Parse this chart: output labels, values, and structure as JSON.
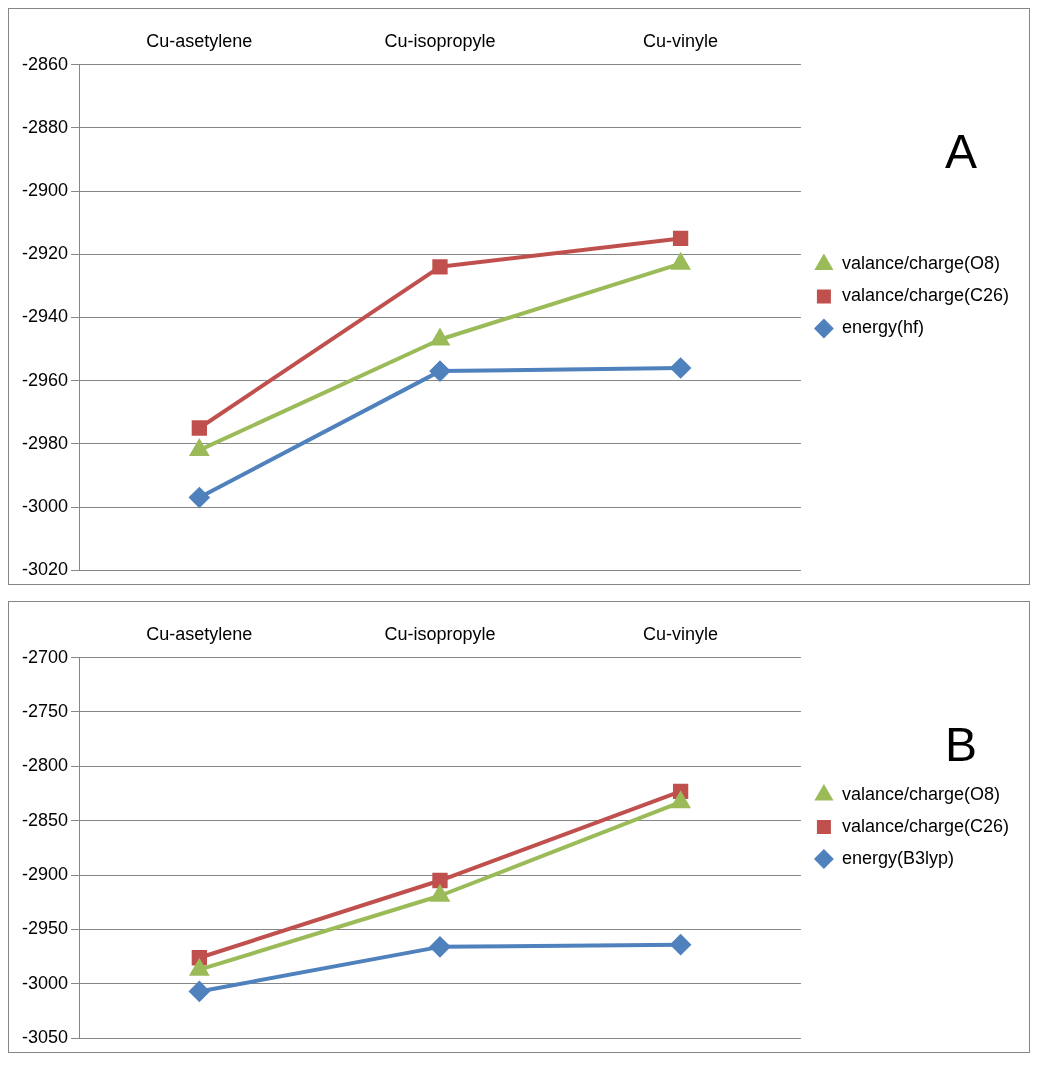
{
  "chart_data": [
    {
      "type": "line",
      "categories": [
        "Cu-asetylene",
        "Cu-isopropyle",
        "Cu-vinyle"
      ],
      "ylim": [
        -3020,
        -2860
      ],
      "yticks": [
        -3020,
        -3000,
        -2980,
        -2960,
        -2940,
        -2920,
        -2900,
        -2880,
        -2860
      ],
      "grid": "y",
      "legend": "right",
      "annotations": [
        "A"
      ],
      "series": [
        {
          "name": "valance/charge(O8)",
          "color": "#9bbb59",
          "marker": "triangle",
          "values": [
            -2982,
            -2947,
            -2923
          ]
        },
        {
          "name": "valance/charge(C26)",
          "color": "#c0504d",
          "marker": "square",
          "values": [
            -2975,
            -2924,
            -2915
          ]
        },
        {
          "name": "energy(hf)",
          "color": "#4f81bd",
          "marker": "diamond",
          "values": [
            -2997,
            -2957,
            -2956
          ]
        }
      ]
    },
    {
      "type": "line",
      "categories": [
        "Cu-asetylene",
        "Cu-isopropyle",
        "Cu-vinyle"
      ],
      "ylim": [
        -3050,
        -2700
      ],
      "yticks": [
        -3050,
        -3000,
        -2950,
        -2900,
        -2850,
        -2800,
        -2750,
        -2700
      ],
      "grid": "y",
      "legend": "right",
      "annotations": [
        "B"
      ],
      "series": [
        {
          "name": "valance/charge(O8)",
          "color": "#9bbb59",
          "marker": "triangle",
          "values": [
            -2987,
            -2919,
            -2833
          ]
        },
        {
          "name": "valance/charge(C26)",
          "color": "#c0504d",
          "marker": "square",
          "values": [
            -2976,
            -2905,
            -2823
          ]
        },
        {
          "name": "energy(B3lyp)",
          "color": "#4f81bd",
          "marker": "diamond",
          "values": [
            -3007,
            -2966,
            -2964
          ]
        }
      ]
    }
  ]
}
